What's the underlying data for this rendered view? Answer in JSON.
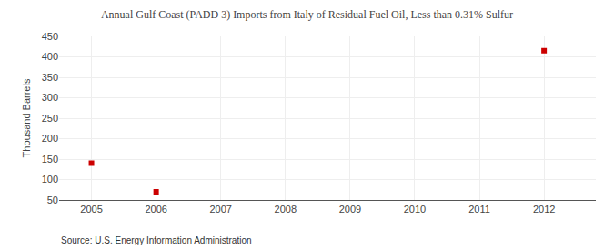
{
  "chart_data": {
    "type": "scatter",
    "title": "Annual Gulf Coast (PADD 3) Imports from Italy of Residual Fuel Oil, Less than 0.31% Sulfur",
    "ylabel": "Thousand Barrels",
    "annotations": [
      "Source: U.S. Energy Information Administration"
    ],
    "x": [
      2005,
      2006,
      2012
    ],
    "values": [
      140,
      70,
      415
    ],
    "color": "#cc0000",
    "marker": "square",
    "xlim": [
      2004.5,
      2012.8
    ],
    "xticks": [
      2005,
      2006,
      2007,
      2008,
      2009,
      2010,
      2011,
      2012
    ],
    "ylim": [
      50,
      450
    ],
    "yticks": [
      50,
      100,
      150,
      200,
      250,
      300,
      350,
      400,
      450
    ],
    "grid": true
  }
}
